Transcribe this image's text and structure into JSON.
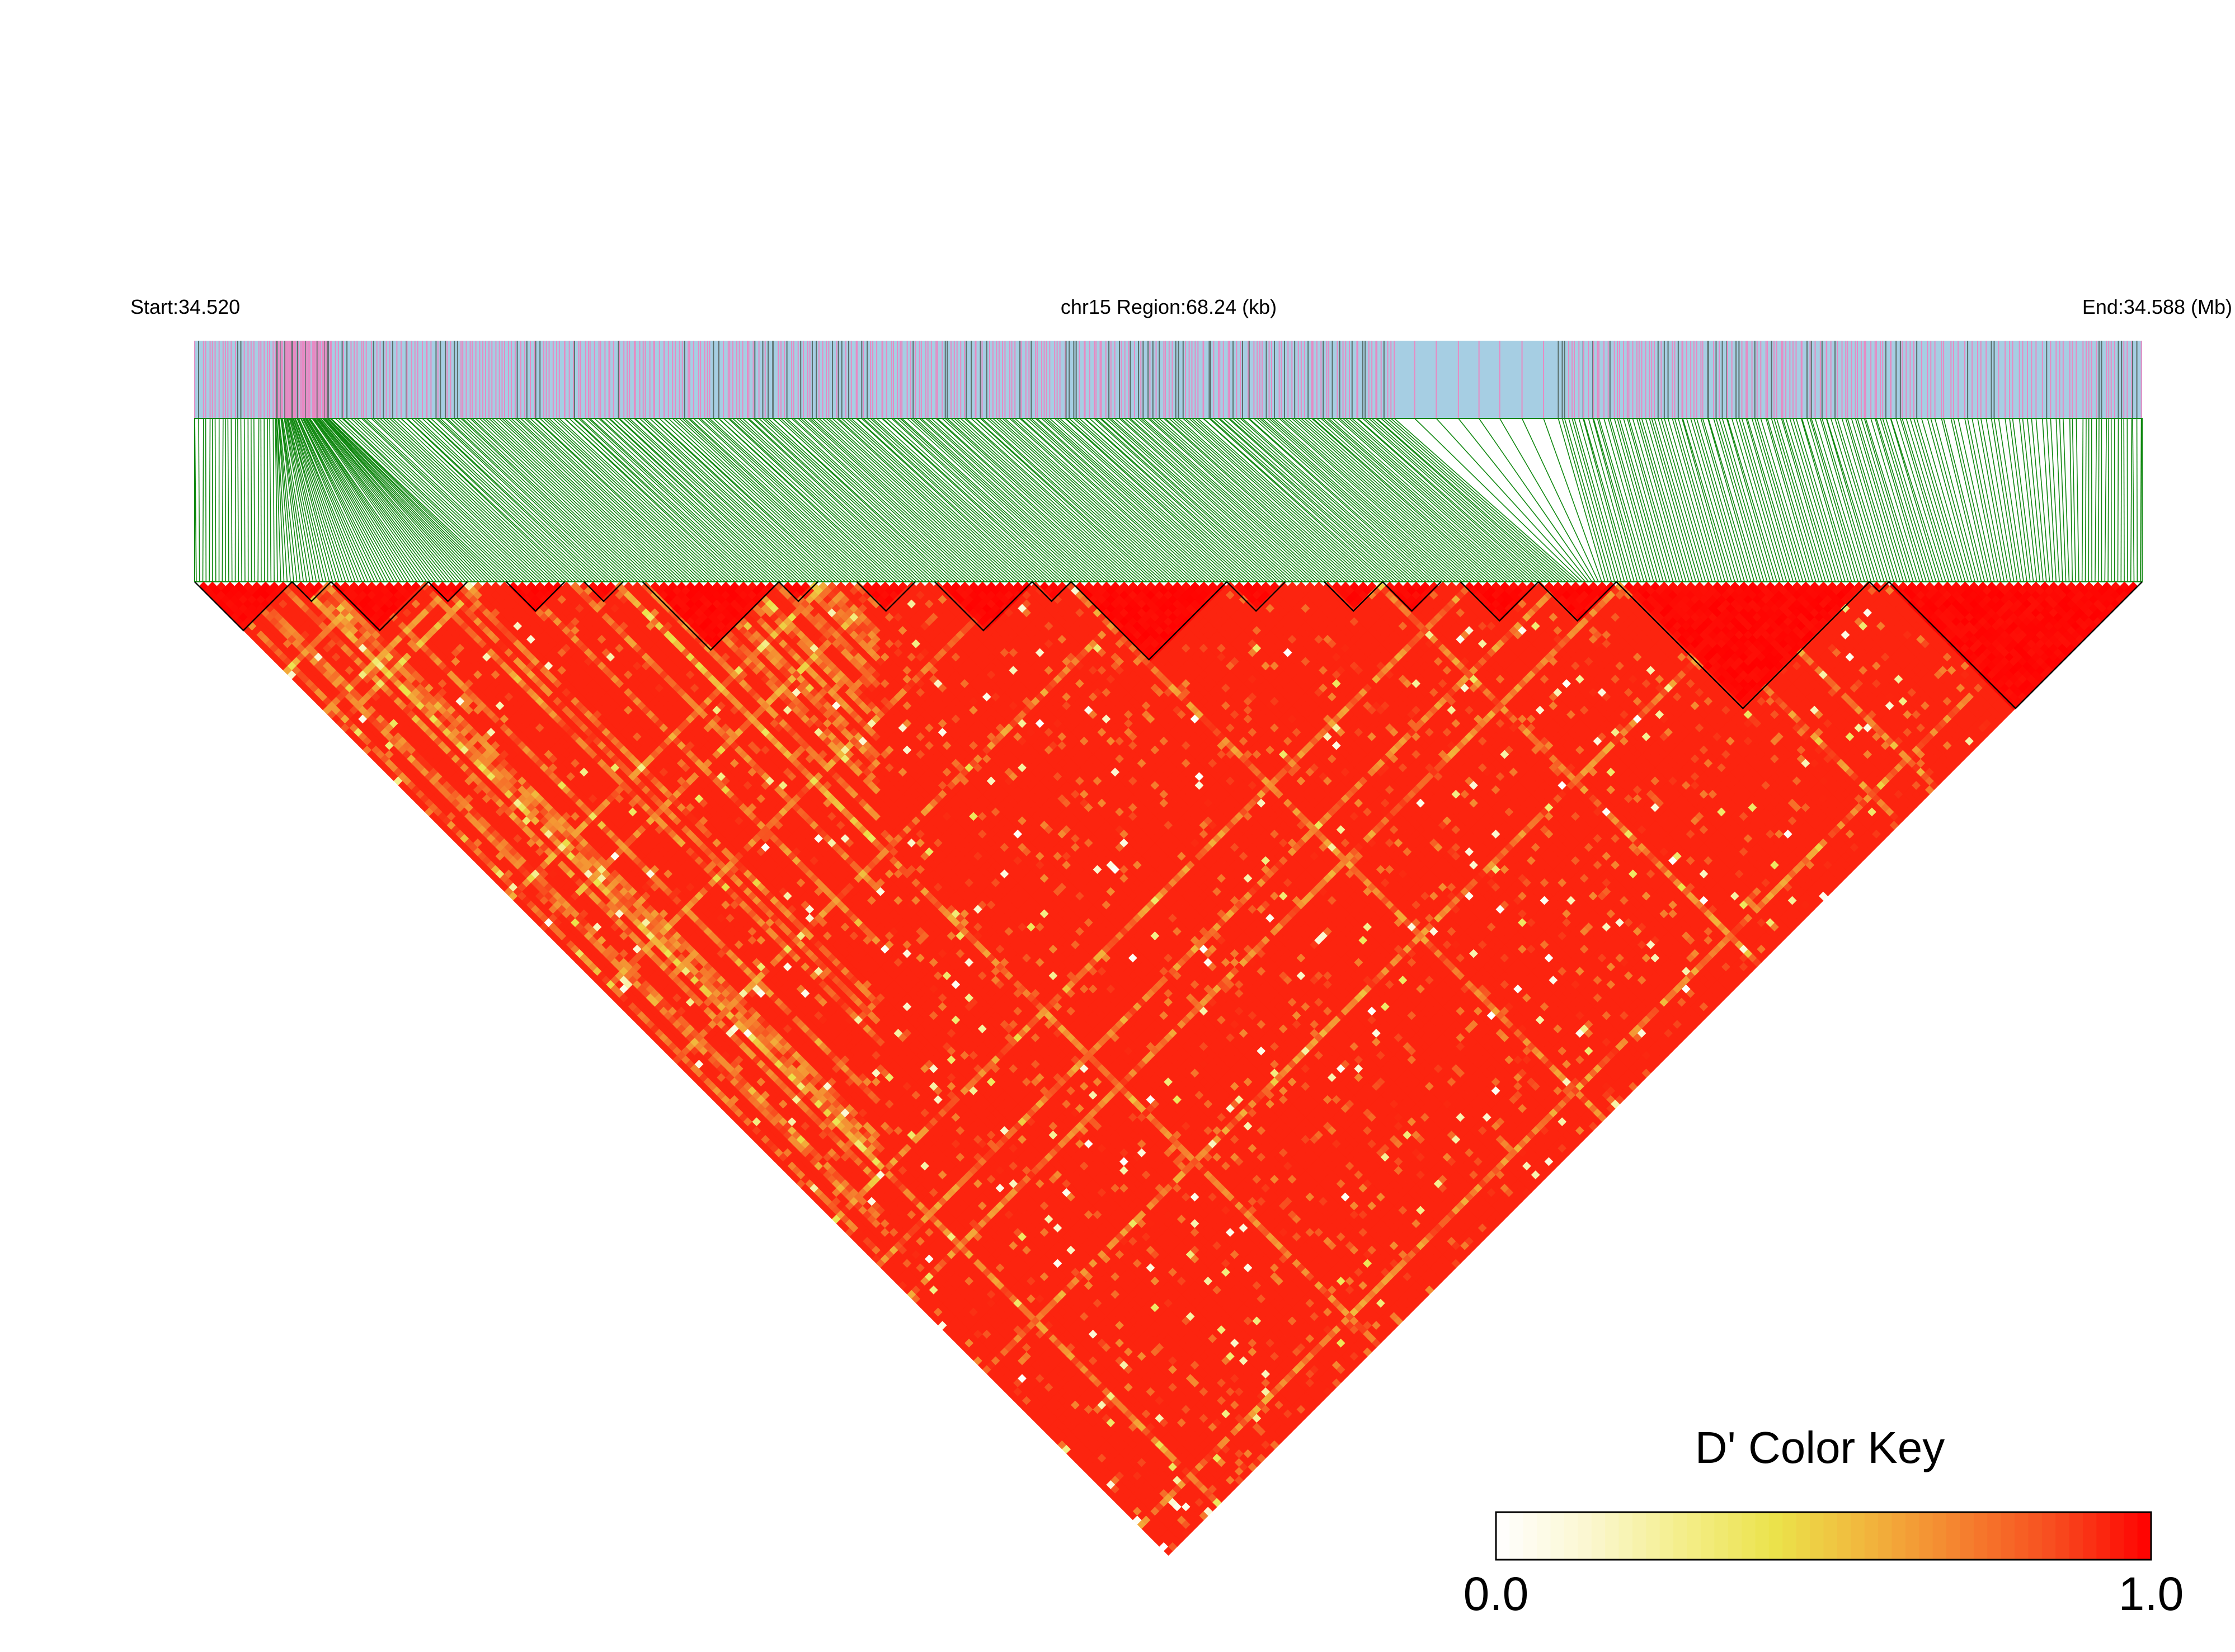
{
  "header": {
    "start_label": "Start:34.520",
    "region_label": "chr15 Region:68.24 (kb)",
    "end_label": "End:34.588 (Mb)"
  },
  "colors": {
    "track_bg": "#a6cee3",
    "snp_line_pink": "#e78ac3",
    "snp_line_dark": "#5a6f6a",
    "connector_green": "#118811",
    "ld_high": "#ff0000",
    "ld_mid": "#f5e33f",
    "ld_low": "#ffffff",
    "block_outline": "#000000"
  },
  "color_key": {
    "title": "D' Color Key",
    "min_label": "0.0",
    "max_label": "1.0",
    "stops": [
      "#ffffff",
      "#fbf7d0",
      "#f4ee8a",
      "#ebe24a",
      "#f2b43c",
      "#f5802e",
      "#f84a1e",
      "#ff0000"
    ]
  },
  "chart_data": {
    "type": "heatmap",
    "title": "",
    "region": {
      "chromosome": "chr15",
      "start_mb": 34.52,
      "end_mb": 34.588,
      "length_kb": 68.24
    },
    "measure": "D'",
    "value_range": [
      0.0,
      1.0
    ],
    "n_snps_approx": 600,
    "grid": false,
    "legend_position": "bottom-right",
    "dominant_value": "high D' (near 1.0) across most pairs",
    "haplotype_blocks_approx_fraction": [
      [
        0.0,
        0.05
      ],
      [
        0.05,
        0.07
      ],
      [
        0.07,
        0.12
      ],
      [
        0.12,
        0.14
      ],
      [
        0.16,
        0.19
      ],
      [
        0.2,
        0.22
      ],
      [
        0.23,
        0.3
      ],
      [
        0.3,
        0.32
      ],
      [
        0.34,
        0.37
      ],
      [
        0.38,
        0.43
      ],
      [
        0.43,
        0.45
      ],
      [
        0.45,
        0.53
      ],
      [
        0.53,
        0.56
      ],
      [
        0.58,
        0.61
      ],
      [
        0.61,
        0.64
      ],
      [
        0.65,
        0.69
      ],
      [
        0.69,
        0.73
      ],
      [
        0.73,
        0.86
      ],
      [
        0.86,
        0.87
      ],
      [
        0.87,
        1.0
      ]
    ]
  }
}
